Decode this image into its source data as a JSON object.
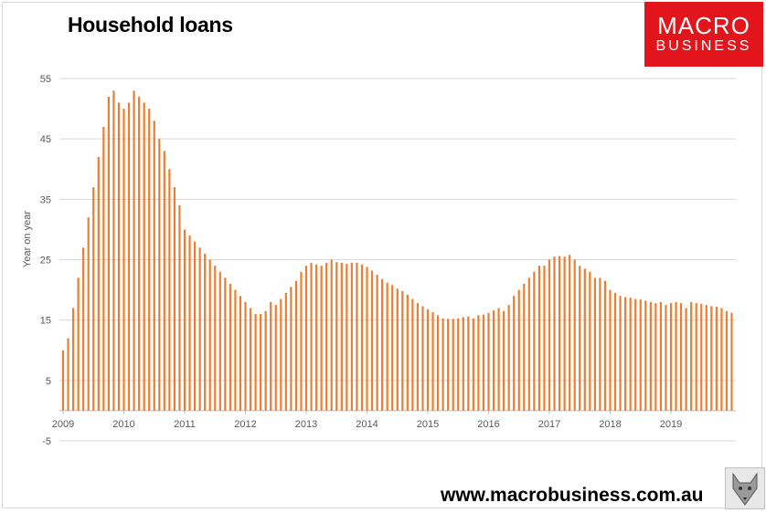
{
  "brand": {
    "line1": "MACRO",
    "line2": "BUSINESS",
    "url": "www.macrobusiness.com.au"
  },
  "chart_data": {
    "type": "bar",
    "title": "Household loans",
    "ylabel": "Year on year",
    "xlabel": "",
    "ylim": [
      -5,
      55
    ],
    "yticks": [
      55,
      45,
      35,
      25,
      15,
      5,
      -5
    ],
    "year_labels": [
      "2009",
      "2010",
      "2011",
      "2012",
      "2013",
      "2014",
      "2015",
      "2016",
      "2017",
      "2018",
      "2019"
    ],
    "grid": true,
    "legend": "none",
    "bar_color": "#ed7d31",
    "x_start": "2009-01",
    "x_end": "2019-10",
    "values": [
      10,
      12,
      17,
      22,
      27,
      32,
      37,
      42,
      47,
      52,
      53,
      51,
      50,
      51,
      53,
      52,
      51,
      50,
      48,
      45,
      43,
      40,
      37,
      34,
      30,
      29,
      28,
      27,
      26,
      25,
      24,
      23,
      22,
      21,
      20,
      19,
      18,
      17,
      16,
      16,
      16.5,
      18,
      17.5,
      18.5,
      19.5,
      20.5,
      21.5,
      23,
      24,
      24.5,
      24.2,
      24,
      24.5,
      25,
      24.6,
      24.5,
      24.3,
      24.5,
      24.5,
      24.2,
      23.8,
      23.2,
      22.5,
      21.8,
      21.2,
      20.8,
      20.2,
      19.8,
      19.2,
      18.5,
      17.8,
      17.3,
      16.8,
      16.3,
      15.8,
      15.3,
      15.2,
      15.2,
      15.3,
      15.5,
      15.6,
      15.3,
      15.8,
      15.9,
      16.2,
      16.6,
      17,
      16.5,
      17.5,
      19,
      20,
      21,
      22,
      23,
      24,
      24,
      25,
      25.5,
      25.6,
      25.5,
      25.8,
      25,
      24,
      23.5,
      23,
      22,
      22,
      21.5,
      20,
      19.5,
      19,
      18.8,
      18.7,
      18.5,
      18.4,
      18.2,
      18,
      17.8,
      18,
      17.5,
      17.8,
      18,
      17.8,
      17,
      18,
      17.8,
      17.7,
      17.5,
      17.3,
      17.2,
      17,
      16.5,
      16.2
    ]
  }
}
